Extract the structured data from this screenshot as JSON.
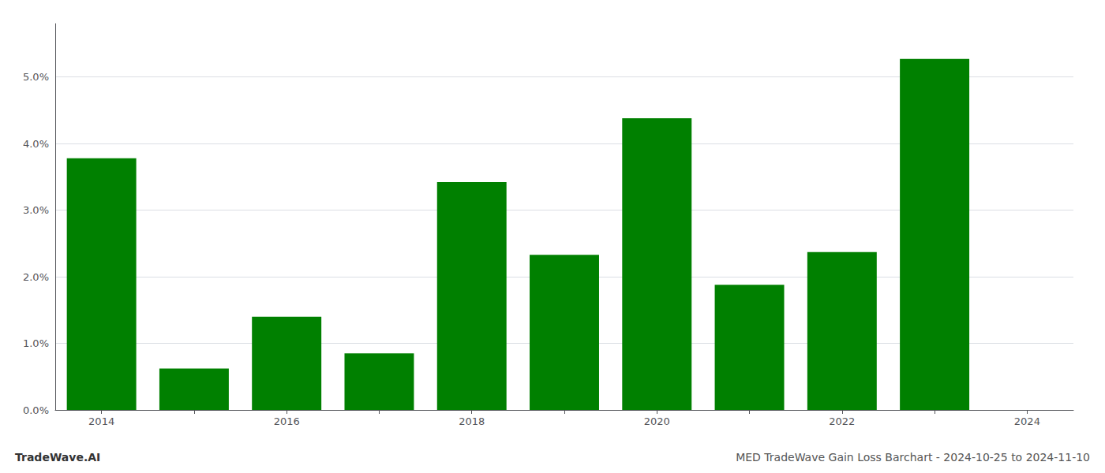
{
  "chart_data": {
    "type": "bar",
    "title": "MED TradeWave Gain Loss Barchart - 2024-10-25 to 2024-11-10",
    "annotations": [
      "TradeWave.AI"
    ],
    "categories": [
      "2014",
      null,
      "2016",
      null,
      "2018",
      null,
      "2020",
      null,
      "2022",
      null,
      "2024"
    ],
    "values": [
      0.0378,
      0.0062,
      0.014,
      0.0085,
      0.0342,
      0.0233,
      0.0438,
      0.0188,
      0.0237,
      0.0527,
      null
    ],
    "color": "#008000",
    "ylim": [
      0,
      0.058
    ],
    "yticks": [
      {
        "value": 0.0,
        "label": "0.0%"
      },
      {
        "value": 0.01,
        "label": "1.0%"
      },
      {
        "value": 0.02,
        "label": "2.0%"
      },
      {
        "value": 0.03,
        "label": "3.0%"
      },
      {
        "value": 0.04,
        "label": "4.0%"
      },
      {
        "value": 0.05,
        "label": "5.0%"
      }
    ],
    "grid": true
  }
}
